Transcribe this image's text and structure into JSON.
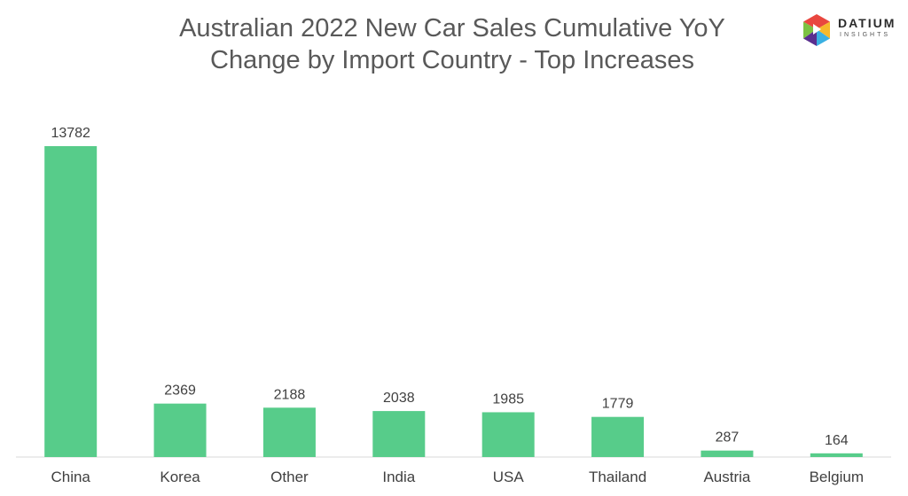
{
  "brand": {
    "name": "DATIUM",
    "tagline": "INSIGHTS",
    "icon": "datium-hexagon-logo",
    "colors": [
      "#e9473f",
      "#f6b92b",
      "#3ab0e2",
      "#5a2f8f",
      "#7cc242"
    ]
  },
  "chart_data": {
    "type": "bar",
    "title_lines": [
      "Australian 2022 New Car Sales Cumulative YoY",
      "Change by Import Country - Top Increases"
    ],
    "categories": [
      "China",
      "Korea",
      "Other",
      "India",
      "USA",
      "Thailand",
      "Austria",
      "Belgium"
    ],
    "values": [
      13782,
      2369,
      2188,
      2038,
      1985,
      1779,
      287,
      164
    ],
    "data_labels": [
      "13782",
      "2369",
      "2188",
      "2038",
      "1985",
      "1779",
      "287",
      "164"
    ],
    "ylim": [
      0,
      14000
    ],
    "grid": false,
    "legend": "none",
    "bar_color": "#57cc8a"
  }
}
